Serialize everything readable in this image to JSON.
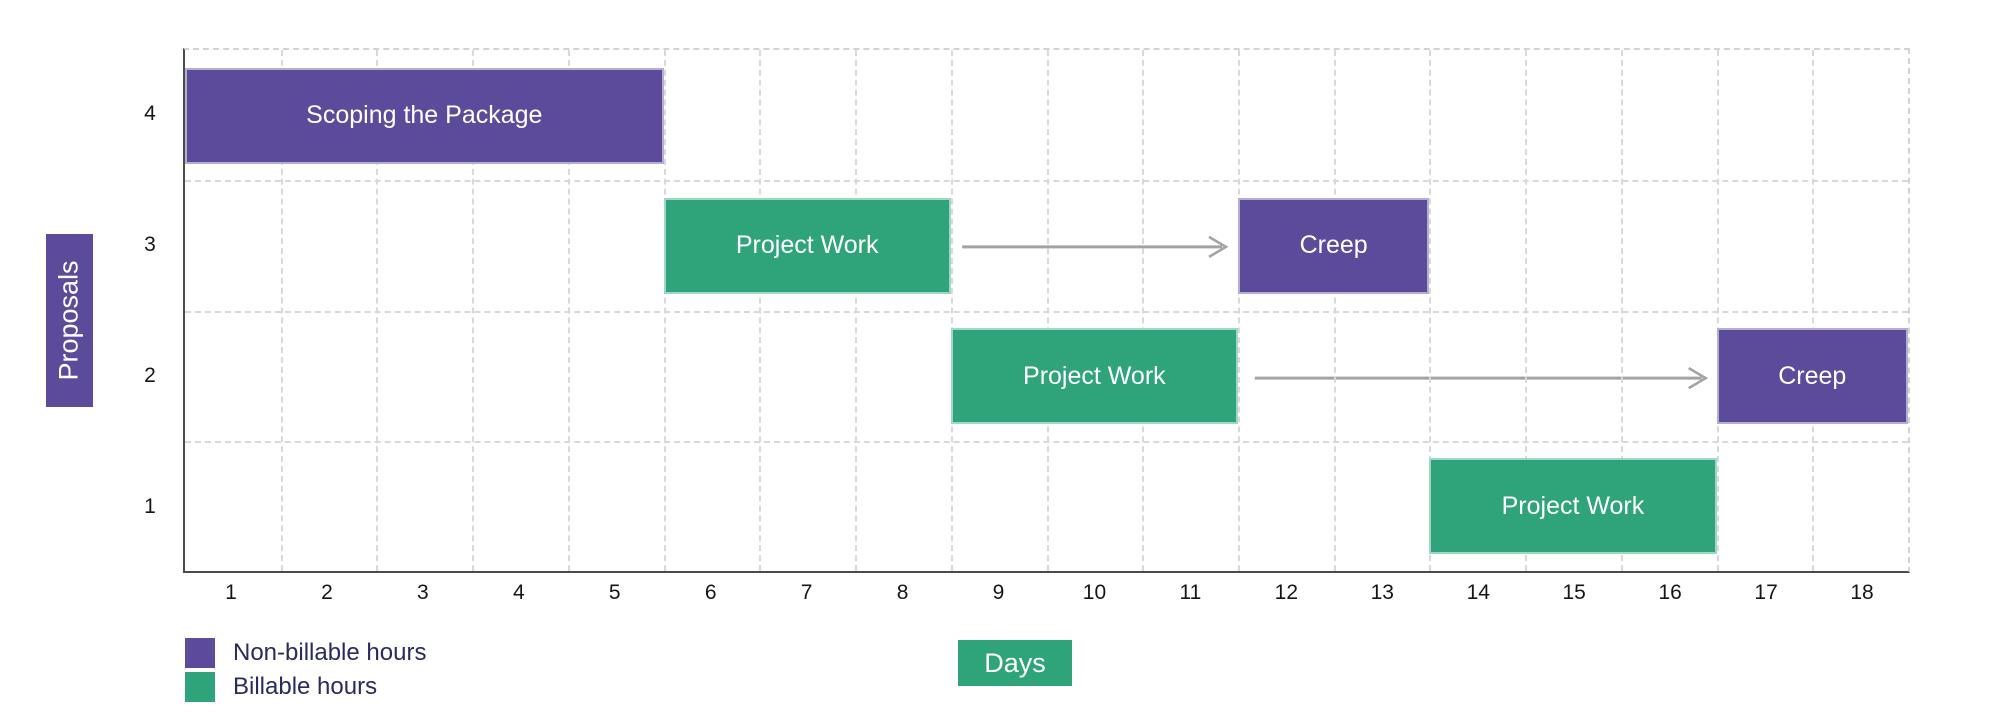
{
  "chart_data": {
    "type": "bar",
    "subtype": "gantt",
    "title": "",
    "xlabel": "Days",
    "ylabel": "Proposals",
    "x_range": [
      0.5,
      18.5
    ],
    "x_ticks": [
      "1",
      "2",
      "3",
      "4",
      "5",
      "6",
      "7",
      "8",
      "9",
      "10",
      "11",
      "12",
      "13",
      "14",
      "15",
      "16",
      "17",
      "18"
    ],
    "y_ticks": [
      "4",
      "3",
      "2",
      "1"
    ],
    "grid": "dashed lines at every day boundary and row boundary",
    "legend_position": "bottom-left",
    "colors": {
      "non_billable": "#5c4b9b",
      "billable": "#2fa47b",
      "ylabel_box": "#5c4b9b",
      "xlabel_box": "#2fa47b",
      "arrow": "#a3a3a3",
      "axis_line": "#4b4b4b",
      "gridline": "#d9d9d9",
      "tick_text": "#161616",
      "legend_text": "#2b2a5e"
    },
    "bars": [
      {
        "row": 4,
        "start": 0.5,
        "end": 5.5,
        "label": "Scoping the Package",
        "type": "non_billable"
      },
      {
        "row": 3,
        "start": 5.5,
        "end": 8.5,
        "label": "Project Work",
        "type": "billable"
      },
      {
        "row": 3,
        "start": 11.5,
        "end": 13.5,
        "label": "Creep",
        "type": "non_billable"
      },
      {
        "row": 2,
        "start": 8.5,
        "end": 11.5,
        "label": "Project Work",
        "type": "billable"
      },
      {
        "row": 2,
        "start": 16.5,
        "end": 18.5,
        "label": "Creep",
        "type": "non_billable"
      },
      {
        "row": 1,
        "start": 13.5,
        "end": 16.5,
        "label": "Project Work",
        "type": "billable"
      }
    ],
    "arrows": [
      {
        "row": 3,
        "from": 8.6,
        "to": 11.35
      },
      {
        "row": 2,
        "from": 11.65,
        "to": 16.35
      }
    ],
    "legend": [
      {
        "label": "Non-billable hours",
        "type": "non_billable"
      },
      {
        "label": "Billable hours",
        "type": "billable"
      }
    ]
  }
}
